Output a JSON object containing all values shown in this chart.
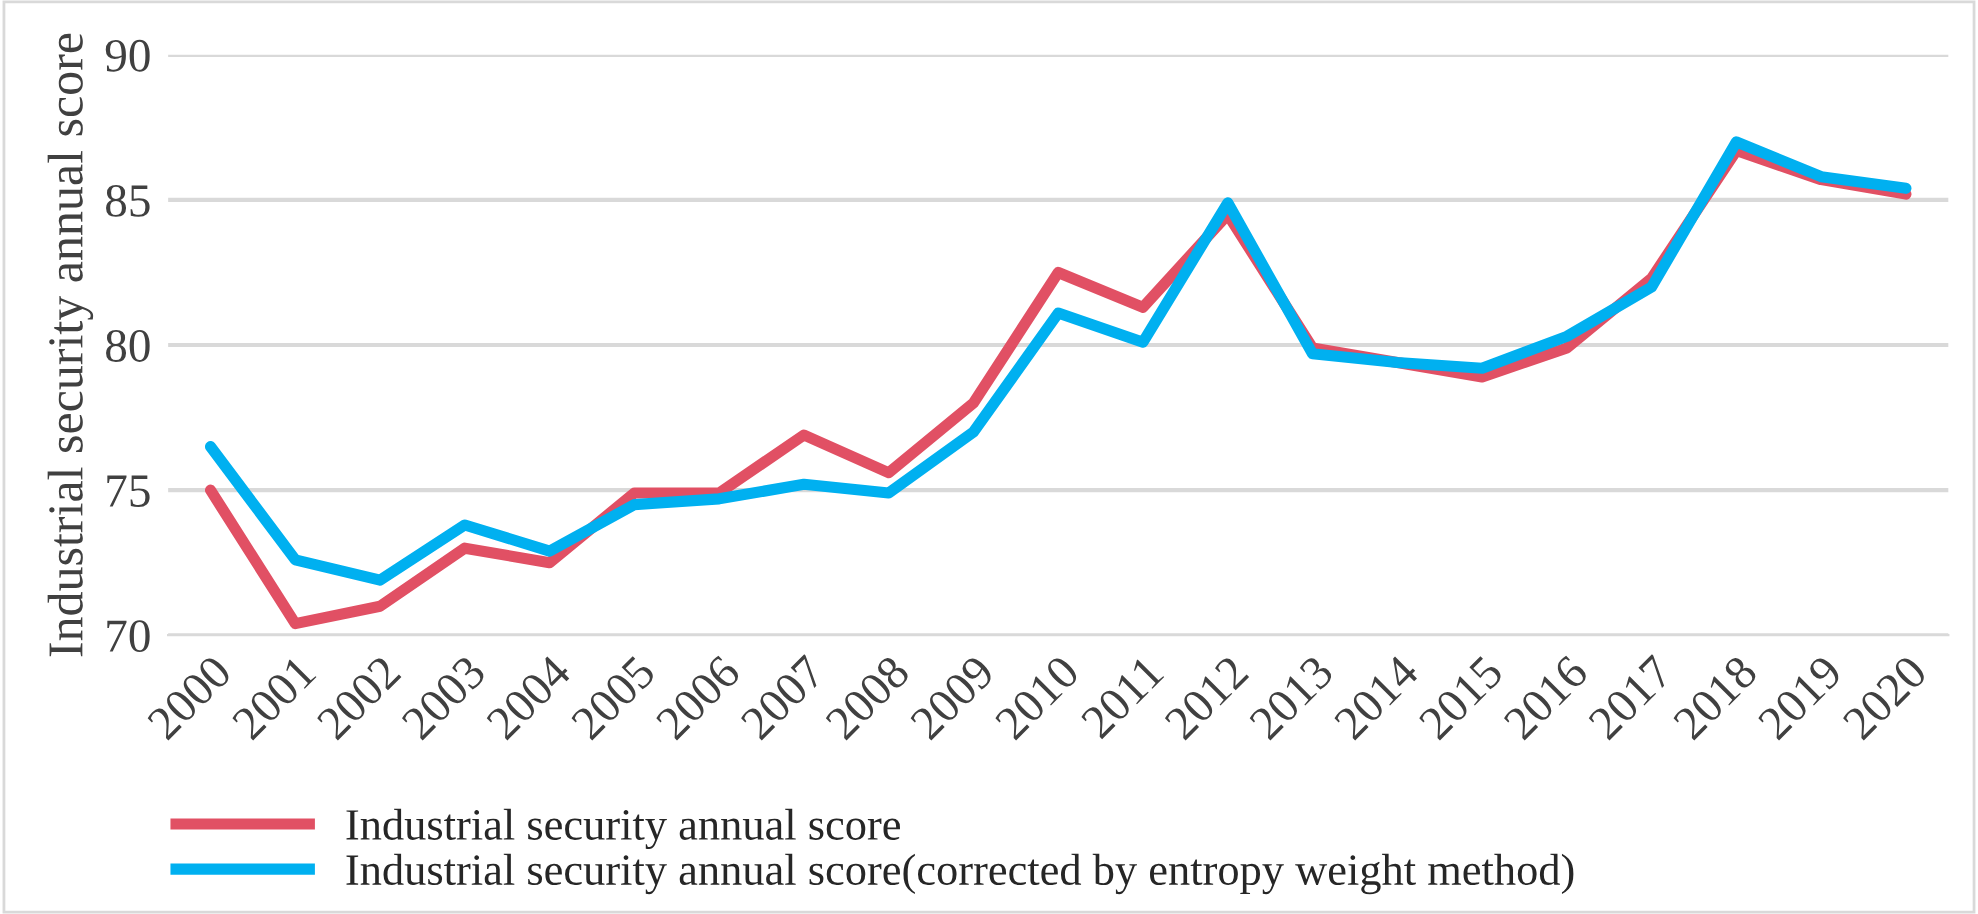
{
  "chart_data": {
    "type": "line",
    "ylabel": "Industrial security annual score",
    "categories": [
      "2000",
      "2001",
      "2002",
      "2003",
      "2004",
      "2005",
      "2006",
      "2007",
      "2008",
      "2009",
      "2010",
      "2011",
      "2012",
      "2013",
      "2014",
      "2015",
      "2016",
      "2017",
      "2018",
      "2019",
      "2020"
    ],
    "series": [
      {
        "name": "Industrial security annual score",
        "color": "#e15064",
        "values": [
          75.0,
          70.4,
          71.0,
          73.0,
          72.5,
          74.9,
          74.9,
          76.9,
          75.6,
          78.0,
          82.5,
          81.3,
          84.5,
          79.9,
          79.4,
          78.9,
          79.9,
          82.3,
          86.7,
          85.7,
          85.2
        ]
      },
      {
        "name": "Industrial security annual score(corrected by entropy weight method)",
        "color": "#00b0f0",
        "values": [
          76.5,
          72.6,
          71.9,
          73.8,
          72.9,
          74.5,
          74.7,
          75.2,
          74.9,
          77.0,
          81.1,
          80.1,
          84.9,
          79.7,
          79.4,
          79.2,
          80.3,
          82.0,
          87.0,
          85.8,
          85.4
        ]
      }
    ],
    "ylim": [
      70,
      90
    ],
    "yticks": [
      70,
      75,
      80,
      85,
      90
    ],
    "grid": "y",
    "legend": "bottom left",
    "line_style": "solid",
    "marker": "none"
  }
}
